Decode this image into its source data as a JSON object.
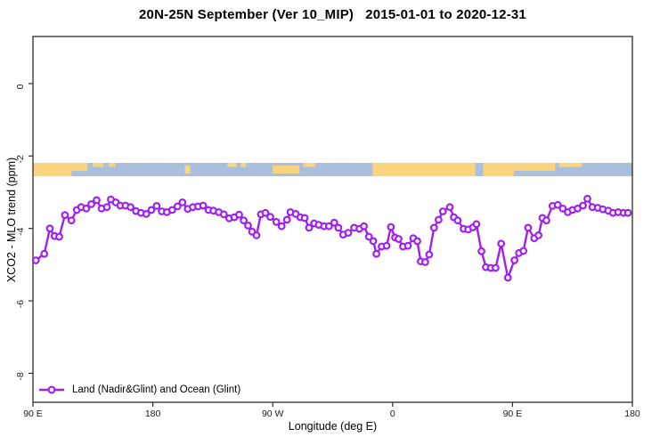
{
  "title": "20N-25N September (Ver 10_MIP)   2015-01-01 to 2020-12-31",
  "legend": {
    "label": "Land (Nadir&Glint) and Ocean (Glint)"
  },
  "colors": {
    "series": "#A020F0",
    "marker_fill": "#ffffff",
    "land": "#FAD580",
    "ocean": "#AABFDB",
    "axis": "#2b2b2b",
    "text": "#1a1a1a"
  },
  "chart_data": {
    "type": "line",
    "title": "20N-25N September (Ver 10_MIP)   2015-01-01 to 2020-12-31",
    "xlabel": "Longitude (deg E)",
    "ylabel": "XCO2 - MLO trend (ppm)",
    "ylim": [
      -8.8,
      1.3
    ],
    "x_axis_span_deg": 450,
    "x_ticks": [
      {
        "pos": 0,
        "label": "90 E"
      },
      {
        "pos": 90,
        "label": "180"
      },
      {
        "pos": 180,
        "label": "90 W"
      },
      {
        "pos": 270,
        "label": "0"
      },
      {
        "pos": 360,
        "label": "90 E"
      },
      {
        "pos": 450,
        "label": "180"
      }
    ],
    "y_ticks": [
      0,
      -2,
      -4,
      -6,
      -8
    ],
    "grid": false,
    "legend_position": "bottom-left",
    "map_strip": {
      "description": "world land/ocean strip for 20N-25N latitude band",
      "value_top": -2.19,
      "value_bottom": -2.56,
      "land_segments": [
        {
          "from": 0,
          "to": 29,
          "cover": "full"
        },
        {
          "from": 29,
          "to": 41,
          "cover": "top"
        },
        {
          "from": 45,
          "to": 53,
          "cover": "thin"
        },
        {
          "from": 57,
          "to": 62,
          "cover": "thin"
        },
        {
          "from": 114,
          "to": 118,
          "cover": "mid"
        },
        {
          "from": 146,
          "to": 153,
          "cover": "thin"
        },
        {
          "from": 156,
          "to": 160,
          "cover": "thin"
        },
        {
          "from": 180,
          "to": 200,
          "cover": "mid"
        },
        {
          "from": 203,
          "to": 212,
          "cover": "thin"
        },
        {
          "from": 255,
          "to": 332,
          "cover": "full"
        },
        {
          "from": 338,
          "to": 361,
          "cover": "full"
        },
        {
          "from": 361,
          "to": 392,
          "cover": "top"
        },
        {
          "from": 395,
          "to": 412,
          "cover": "thin"
        }
      ]
    },
    "series": [
      {
        "name": "Land (Nadir&Glint) and Ocean (Glint)",
        "marker": "open-circle",
        "points": [
          [
            2.2,
            -4.88
          ],
          [
            8.5,
            -4.7
          ],
          [
            12.7,
            -4.0
          ],
          [
            16.2,
            -4.21
          ],
          [
            19.7,
            -4.23
          ],
          [
            24.0,
            -3.63
          ],
          [
            28.9,
            -3.78
          ],
          [
            32.9,
            -3.49
          ],
          [
            36.2,
            -3.41
          ],
          [
            40.0,
            -3.45
          ],
          [
            43.8,
            -3.33
          ],
          [
            47.8,
            -3.22
          ],
          [
            51.5,
            -3.45
          ],
          [
            55.5,
            -3.41
          ],
          [
            58.5,
            -3.2
          ],
          [
            62.2,
            -3.28
          ],
          [
            65.5,
            -3.37
          ],
          [
            69.5,
            -3.37
          ],
          [
            73.3,
            -3.41
          ],
          [
            77.3,
            -3.52
          ],
          [
            81.1,
            -3.57
          ],
          [
            85.1,
            -3.6
          ],
          [
            88.9,
            -3.49
          ],
          [
            92.9,
            -3.38
          ],
          [
            96.7,
            -3.53
          ],
          [
            100.5,
            -3.55
          ],
          [
            104.5,
            -3.49
          ],
          [
            108.5,
            -3.39
          ],
          [
            112.2,
            -3.28
          ],
          [
            116.2,
            -3.46
          ],
          [
            120.0,
            -3.41
          ],
          [
            124.0,
            -3.39
          ],
          [
            127.8,
            -3.37
          ],
          [
            131.8,
            -3.49
          ],
          [
            135.5,
            -3.51
          ],
          [
            139.5,
            -3.55
          ],
          [
            143.3,
            -3.61
          ],
          [
            147.3,
            -3.72
          ],
          [
            151.1,
            -3.69
          ],
          [
            154.8,
            -3.62
          ],
          [
            158.2,
            -3.78
          ],
          [
            161.5,
            -3.92
          ],
          [
            164.5,
            -4.09
          ],
          [
            167.8,
            -4.19
          ],
          [
            171.1,
            -3.61
          ],
          [
            174.5,
            -3.57
          ],
          [
            178.2,
            -3.68
          ],
          [
            182.7,
            -3.82
          ],
          [
            186.7,
            -3.94
          ],
          [
            190.7,
            -3.76
          ],
          [
            193.3,
            -3.55
          ],
          [
            197.3,
            -3.6
          ],
          [
            200.7,
            -3.69
          ],
          [
            204.0,
            -3.71
          ],
          [
            207.3,
            -3.98
          ],
          [
            211.1,
            -3.86
          ],
          [
            214.5,
            -3.9
          ],
          [
            218.5,
            -3.94
          ],
          [
            222.2,
            -3.94
          ],
          [
            226.2,
            -3.84
          ],
          [
            229.3,
            -3.98
          ],
          [
            232.9,
            -4.17
          ],
          [
            236.7,
            -4.12
          ],
          [
            241.1,
            -3.98
          ],
          [
            245.1,
            -4.01
          ],
          [
            248.5,
            -3.94
          ],
          [
            252.2,
            -4.23
          ],
          [
            255.5,
            -4.35
          ],
          [
            257.8,
            -4.7
          ],
          [
            261.8,
            -4.5
          ],
          [
            265.5,
            -4.48
          ],
          [
            268.7,
            -3.96
          ],
          [
            271.8,
            -4.25
          ],
          [
            274.5,
            -4.29
          ],
          [
            277.8,
            -4.5
          ],
          [
            281.5,
            -4.48
          ],
          [
            285.5,
            -4.27
          ],
          [
            288.5,
            -4.35
          ],
          [
            291.1,
            -4.91
          ],
          [
            294.5,
            -4.93
          ],
          [
            297.5,
            -4.72
          ],
          [
            301.1,
            -3.98
          ],
          [
            304.5,
            -3.76
          ],
          [
            307.8,
            -3.53
          ],
          [
            312.9,
            -3.41
          ],
          [
            316.0,
            -3.69
          ],
          [
            318.9,
            -3.78
          ],
          [
            323.3,
            -4.01
          ],
          [
            326.7,
            -4.03
          ],
          [
            330.3,
            -3.97
          ],
          [
            332.9,
            -3.88
          ],
          [
            336.7,
            -4.63
          ],
          [
            340.0,
            -5.07
          ],
          [
            343.7,
            -5.09
          ],
          [
            347.3,
            -5.09
          ],
          [
            351.5,
            -4.42
          ],
          [
            356.5,
            -5.36
          ],
          [
            361.5,
            -4.88
          ],
          [
            364.9,
            -4.68
          ],
          [
            368.2,
            -4.62
          ],
          [
            371.7,
            -3.98
          ],
          [
            376.3,
            -4.27
          ],
          [
            379.5,
            -4.19
          ],
          [
            382.5,
            -3.71
          ],
          [
            385.5,
            -3.78
          ],
          [
            390.0,
            -3.38
          ],
          [
            394.0,
            -3.35
          ],
          [
            397.8,
            -3.45
          ],
          [
            401.5,
            -3.55
          ],
          [
            405.1,
            -3.49
          ],
          [
            408.9,
            -3.45
          ],
          [
            412.9,
            -3.37
          ],
          [
            416.2,
            -3.18
          ],
          [
            420.0,
            -3.41
          ],
          [
            424.0,
            -3.43
          ],
          [
            427.8,
            -3.47
          ],
          [
            431.8,
            -3.51
          ],
          [
            435.5,
            -3.57
          ],
          [
            439.3,
            -3.55
          ],
          [
            443.3,
            -3.57
          ],
          [
            446.7,
            -3.57
          ]
        ]
      }
    ]
  }
}
